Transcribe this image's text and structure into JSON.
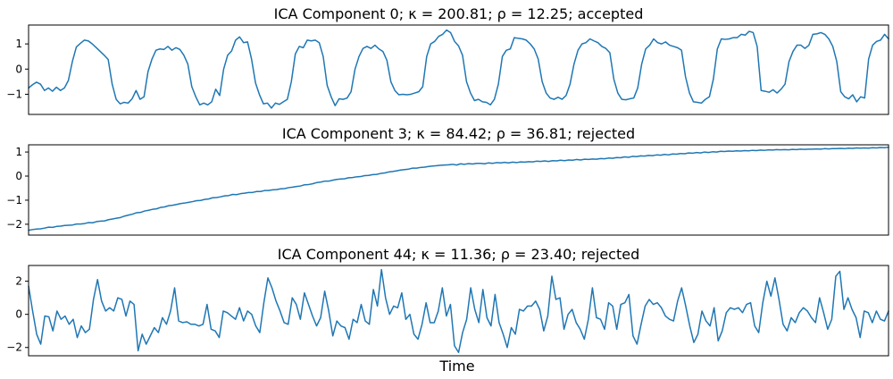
{
  "xlabel": "Time",
  "line_color": "#1f77b4",
  "chart_data": [
    {
      "type": "line",
      "title": "ICA Component 0; κ = 200.81; ρ = 12.25; accepted",
      "ylim": [
        -1.8,
        1.75
      ],
      "yticks": [
        -1,
        0,
        1
      ],
      "ytick_labels": [
        "−1",
        "0",
        "1"
      ],
      "grid": false,
      "legend": "none",
      "y": [
        -0.75,
        -0.62,
        -0.52,
        -0.6,
        -0.85,
        -0.75,
        -0.88,
        -0.72,
        -0.85,
        -0.75,
        -0.45,
        0.3,
        0.88,
        1.02,
        1.15,
        1.12,
        1.0,
        0.85,
        0.7,
        0.55,
        0.38,
        -0.6,
        -1.2,
        -1.38,
        -1.32,
        -1.35,
        -1.18,
        -0.85,
        -1.2,
        -1.1,
        -0.1,
        0.4,
        0.75,
        0.8,
        0.78,
        0.9,
        0.75,
        0.85,
        0.78,
        0.55,
        0.2,
        -0.7,
        -1.1,
        -1.42,
        -1.35,
        -1.42,
        -1.3,
        -0.8,
        -1.05,
        0.0,
        0.55,
        0.72,
        1.15,
        1.28,
        1.05,
        1.08,
        0.4,
        -0.55,
        -1.02,
        -1.38,
        -1.35,
        -1.55,
        -1.35,
        -1.4,
        -1.3,
        -1.2,
        -0.5,
        0.6,
        0.9,
        0.85,
        1.15,
        1.12,
        1.15,
        1.05,
        0.5,
        -0.65,
        -1.1,
        -1.45,
        -1.18,
        -1.2,
        -1.15,
        -0.9,
        0.0,
        0.5,
        0.82,
        0.9,
        0.82,
        0.95,
        0.8,
        0.7,
        0.35,
        -0.5,
        -0.85,
        -1.02,
        -1.0,
        -1.02,
        -1.0,
        -0.95,
        -0.9,
        -0.7,
        0.5,
        1.0,
        1.1,
        1.3,
        1.38,
        1.55,
        1.45,
        1.1,
        0.92,
        0.55,
        -0.5,
        -0.95,
        -1.25,
        -1.2,
        -1.3,
        -1.32,
        -1.42,
        -1.2,
        -0.6,
        0.5,
        0.75,
        0.8,
        1.25,
        1.22,
        1.2,
        1.15,
        1.0,
        0.8,
        0.4,
        -0.5,
        -0.95,
        -1.15,
        -1.2,
        -1.12,
        -1.2,
        -1.05,
        -0.6,
        0.2,
        0.75,
        1.0,
        1.05,
        1.2,
        1.12,
        1.05,
        0.9,
        0.82,
        0.65,
        -0.4,
        -0.95,
        -1.2,
        -1.22,
        -1.18,
        -1.15,
        -0.75,
        0.2,
        0.8,
        0.95,
        1.2,
        1.05,
        1.0,
        1.08,
        0.95,
        0.9,
        0.85,
        0.75,
        -0.3,
        -0.95,
        -1.3,
        -1.32,
        -1.35,
        -1.2,
        -1.1,
        -0.4,
        0.8,
        1.2,
        1.18,
        1.2,
        1.25,
        1.25,
        1.38,
        1.35,
        1.5,
        1.45,
        0.9,
        -0.85,
        -0.88,
        -0.92,
        -0.82,
        -0.95,
        -0.8,
        -0.6,
        0.3,
        0.7,
        0.95,
        0.95,
        0.82,
        0.95,
        1.38,
        1.4,
        1.45,
        1.38,
        1.2,
        0.9,
        0.3,
        -0.9,
        -1.1,
        -1.18,
        -1.02,
        -1.3,
        -1.1,
        -1.15,
        0.4,
        0.95,
        1.1,
        1.15,
        1.38,
        1.2
      ]
    },
    {
      "type": "line",
      "title": "ICA Component 3; κ = 84.42; ρ = 36.81; rejected",
      "ylim": [
        -2.45,
        1.3
      ],
      "yticks": [
        -2,
        -1,
        0,
        1
      ],
      "ytick_labels": [
        "−2",
        "−1",
        "0",
        "1"
      ],
      "grid": false,
      "legend": "none",
      "y": [
        -2.25,
        -2.22,
        -2.2,
        -2.19,
        -2.16,
        -2.12,
        -2.13,
        -2.09,
        -2.08,
        -2.05,
        -2.04,
        -2.03,
        -1.99,
        -1.99,
        -1.97,
        -1.93,
        -1.94,
        -1.89,
        -1.87,
        -1.86,
        -1.81,
        -1.78,
        -1.75,
        -1.72,
        -1.66,
        -1.62,
        -1.58,
        -1.52,
        -1.51,
        -1.45,
        -1.42,
        -1.38,
        -1.36,
        -1.3,
        -1.28,
        -1.23,
        -1.21,
        -1.18,
        -1.14,
        -1.12,
        -1.09,
        -1.06,
        -1.02,
        -1.01,
        -0.97,
        -0.95,
        -0.9,
        -0.89,
        -0.86,
        -0.82,
        -0.81,
        -0.76,
        -0.77,
        -0.73,
        -0.71,
        -0.68,
        -0.68,
        -0.64,
        -0.64,
        -0.6,
        -0.6,
        -0.57,
        -0.56,
        -0.53,
        -0.52,
        -0.48,
        -0.46,
        -0.43,
        -0.41,
        -0.36,
        -0.35,
        -0.32,
        -0.27,
        -0.25,
        -0.21,
        -0.21,
        -0.17,
        -0.14,
        -0.12,
        -0.11,
        -0.07,
        -0.06,
        -0.03,
        -0.02,
        0.02,
        0.03,
        0.06,
        0.07,
        0.11,
        0.13,
        0.17,
        0.19,
        0.22,
        0.25,
        0.27,
        0.29,
        0.33,
        0.33,
        0.36,
        0.37,
        0.4,
        0.42,
        0.43,
        0.45,
        0.46,
        0.47,
        0.49,
        0.46,
        0.51,
        0.49,
        0.52,
        0.5,
        0.53,
        0.53,
        0.51,
        0.55,
        0.53,
        0.56,
        0.55,
        0.57,
        0.55,
        0.58,
        0.56,
        0.59,
        0.58,
        0.6,
        0.59,
        0.62,
        0.61,
        0.63,
        0.61,
        0.64,
        0.63,
        0.66,
        0.64,
        0.67,
        0.66,
        0.69,
        0.67,
        0.7,
        0.69,
        0.71,
        0.7,
        0.73,
        0.72,
        0.75,
        0.74,
        0.77,
        0.76,
        0.8,
        0.78,
        0.82,
        0.81,
        0.84,
        0.83,
        0.86,
        0.85,
        0.88,
        0.87,
        0.9,
        0.88,
        0.92,
        0.91,
        0.94,
        0.93,
        0.96,
        0.95,
        0.98,
        0.96,
        1.0,
        0.98,
        1.01,
        1.0,
        1.03,
        1.02,
        1.04,
        1.03,
        1.05,
        1.04,
        1.06,
        1.05,
        1.07,
        1.06,
        1.08,
        1.07,
        1.09,
        1.08,
        1.1,
        1.09,
        1.1,
        1.09,
        1.11,
        1.1,
        1.12,
        1.11,
        1.12,
        1.12,
        1.13,
        1.12,
        1.14,
        1.13,
        1.14,
        1.14,
        1.15,
        1.14,
        1.16,
        1.15,
        1.17,
        1.16,
        1.17,
        1.16,
        1.18,
        1.17,
        1.19,
        1.18,
        1.2
      ]
    },
    {
      "type": "line",
      "title": "ICA Component 44; κ = 11.36; ρ = 23.40; rejected",
      "ylim": [
        -2.5,
        2.95
      ],
      "yticks": [
        -2,
        0,
        2
      ],
      "ytick_labels": [
        "−2",
        "0",
        "2"
      ],
      "grid": false,
      "legend": "none",
      "y": [
        1.7,
        0.2,
        -1.2,
        -1.8,
        -0.1,
        -0.15,
        -1.0,
        0.2,
        -0.3,
        -0.1,
        -0.6,
        -0.3,
        -1.4,
        -0.7,
        -1.1,
        -0.9,
        0.9,
        2.1,
        0.8,
        0.2,
        0.4,
        0.2,
        1.0,
        0.9,
        -0.1,
        0.8,
        0.6,
        -2.2,
        -1.2,
        -1.8,
        -1.3,
        -0.8,
        -1.1,
        -0.2,
        -0.6,
        0.2,
        1.6,
        -0.4,
        -0.5,
        -0.45,
        -0.6,
        -0.6,
        -0.7,
        -0.6,
        0.6,
        -0.9,
        -1.0,
        -1.4,
        0.2,
        0.1,
        -0.1,
        -0.3,
        0.4,
        -0.4,
        0.2,
        0.0,
        -0.7,
        -1.1,
        0.7,
        2.2,
        1.6,
        0.8,
        0.2,
        -0.5,
        -0.6,
        1.0,
        0.6,
        -0.3,
        1.3,
        0.6,
        -0.1,
        -0.7,
        -0.2,
        1.4,
        0.2,
        -1.3,
        -0.4,
        -0.7,
        -0.8,
        -1.5,
        -0.3,
        -0.5,
        0.6,
        -0.4,
        -0.6,
        1.5,
        0.5,
        2.7,
        1.0,
        0.0,
        0.5,
        0.4,
        1.3,
        -0.3,
        0.0,
        -1.2,
        -1.5,
        -0.6,
        0.7,
        -0.5,
        -0.5,
        0.2,
        1.6,
        -0.1,
        0.6,
        -1.9,
        -2.3,
        -1.1,
        -0.3,
        1.6,
        0.3,
        -0.5,
        1.5,
        -0.2,
        -0.7,
        1.2,
        -0.5,
        -1.2,
        -2.0,
        -0.8,
        -1.2,
        0.3,
        0.2,
        0.5,
        0.5,
        0.8,
        0.3,
        -1.0,
        -0.1,
        2.3,
        0.9,
        1.0,
        -0.9,
        0.0,
        0.3,
        -0.5,
        -0.9,
        -1.5,
        -0.3,
        1.6,
        -0.2,
        -0.3,
        -0.9,
        0.7,
        0.5,
        -0.9,
        0.6,
        0.7,
        1.2,
        -1.3,
        -1.8,
        -0.6,
        0.5,
        0.9,
        0.6,
        0.7,
        0.4,
        -0.1,
        -0.3,
        -0.4,
        0.8,
        1.6,
        0.5,
        -0.7,
        -1.7,
        -1.2,
        0.2,
        -0.4,
        -0.7,
        0.4,
        -1.6,
        -1.0,
        0.1,
        0.4,
        0.3,
        0.4,
        0.1,
        0.6,
        0.7,
        -0.7,
        -1.1,
        0.7,
        2.0,
        1.1,
        2.2,
        0.9,
        -0.6,
        -1.0,
        -0.2,
        -0.5,
        0.1,
        0.4,
        0.2,
        -0.2,
        -0.5,
        1.0,
        0.1,
        -0.9,
        -0.3,
        2.3,
        2.6,
        0.3,
        1.0,
        0.3,
        -0.2,
        -1.4,
        0.2,
        0.1,
        -0.5,
        0.2,
        -0.3,
        -0.4,
        0.2
      ]
    }
  ]
}
